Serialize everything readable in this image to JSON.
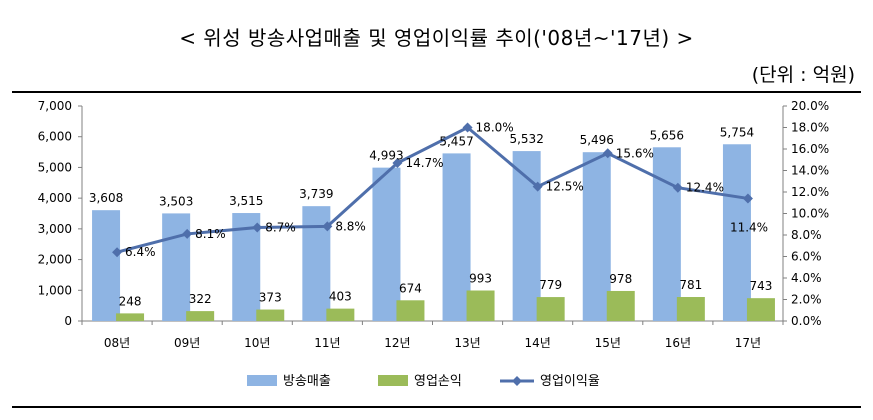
{
  "title": "< 위성 방송사업매출 및 영업이익률 추이('08년~'17년) >",
  "unit": "(단위 : 억원)",
  "chart_data": {
    "type": "bar",
    "categories": [
      "08년",
      "09년",
      "10년",
      "11년",
      "12년",
      "13년",
      "14년",
      "15년",
      "16년",
      "17년"
    ],
    "series": [
      {
        "name": "방송매출",
        "type": "bar",
        "axis": "left",
        "color": "#8eb4e3",
        "values": [
          3608,
          3503,
          3515,
          3739,
          4993,
          5457,
          5532,
          5496,
          5656,
          5754
        ],
        "labels": [
          "3,608",
          "3,503",
          "3,515",
          "3,739",
          "4,993",
          "5,457",
          "5,532",
          "5,496",
          "5,656",
          "5,754"
        ]
      },
      {
        "name": "영업손익",
        "type": "bar",
        "axis": "left",
        "color": "#9bbb59",
        "values": [
          248,
          322,
          373,
          403,
          674,
          993,
          779,
          978,
          781,
          743
        ],
        "labels": [
          "248",
          "322",
          "373",
          "403",
          "674",
          "993",
          "779",
          "978",
          "781",
          "743"
        ]
      },
      {
        "name": "영업이익율",
        "type": "line",
        "axis": "right",
        "color": "#4f6fab",
        "values": [
          6.4,
          8.1,
          8.7,
          8.8,
          14.7,
          18.0,
          12.5,
          15.6,
          12.4,
          11.4
        ],
        "labels": [
          "6.4%",
          "8.1%",
          "8.7%",
          "8.8%",
          "14.7%",
          "18.0%",
          "12.5%",
          "15.6%",
          "12.4%",
          "11.4%"
        ]
      }
    ],
    "y_left": {
      "min": 0,
      "max": 7000,
      "step": 1000,
      "ticks": [
        "0",
        "1,000",
        "2,000",
        "3,000",
        "4,000",
        "5,000",
        "6,000",
        "7,000"
      ]
    },
    "y_right": {
      "min": 0,
      "max": 20,
      "step": 2,
      "ticks": [
        "0.0%",
        "2.0%",
        "4.0%",
        "6.0%",
        "8.0%",
        "10.0%",
        "12.0%",
        "14.0%",
        "16.0%",
        "18.0%",
        "20.0%"
      ]
    },
    "grid": false,
    "legend": "bottom-center"
  }
}
